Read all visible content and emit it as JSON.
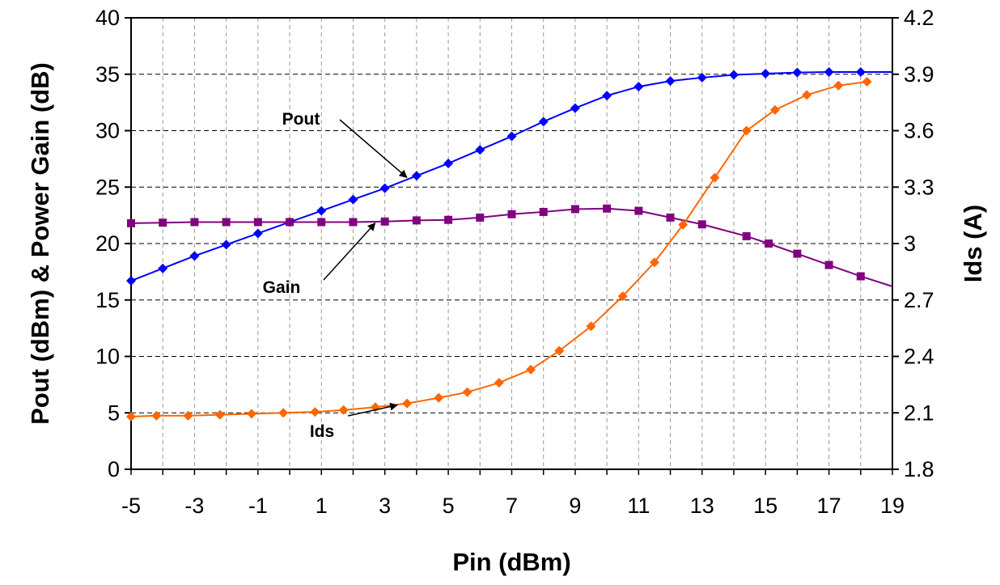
{
  "chart_data": {
    "type": "line",
    "title": "",
    "xlabel": "Pin (dBm)",
    "ylabel": "Pout (dBm) & Power Gain (dB)",
    "y2label": "Ids (A)",
    "xlim": [
      -5,
      19
    ],
    "ylim": [
      0,
      40
    ],
    "y2lim": [
      1.8,
      4.2
    ],
    "x_ticks": [
      "-5",
      "-3",
      "-1",
      "1",
      "3",
      "5",
      "7",
      "9",
      "11",
      "13",
      "15",
      "17",
      "19"
    ],
    "y_ticks": [
      "0",
      "5",
      "10",
      "15",
      "20",
      "25",
      "30",
      "35",
      "40"
    ],
    "y2_ticks": [
      "1.8",
      "2.1",
      "2.4",
      "2.7",
      "3",
      "3.3",
      "3.6",
      "3.9",
      "4.2"
    ],
    "grid": true,
    "series": [
      {
        "name": "Pout",
        "axis": "left",
        "color": "#0000ff",
        "marker": "diamond",
        "x": [
          -5,
          -4,
          -3,
          -2,
          -1,
          0,
          1,
          2,
          3,
          4,
          5,
          6,
          7,
          8,
          9,
          10,
          11,
          12,
          13,
          14,
          15,
          16,
          17,
          18,
          19
        ],
        "y": [
          16.7,
          17.8,
          18.9,
          19.9,
          20.9,
          21.9,
          22.9,
          23.9,
          24.9,
          26.0,
          27.1,
          28.3,
          29.5,
          30.8,
          32.0,
          33.1,
          33.9,
          34.4,
          34.7,
          34.95,
          35.05,
          35.15,
          35.2,
          35.2,
          35.2
        ]
      },
      {
        "name": "Gain",
        "axis": "left",
        "color": "#800080",
        "marker": "square",
        "x": [
          -5,
          -4,
          -3,
          -2,
          -1,
          0,
          1,
          2,
          3,
          4,
          5,
          6,
          7,
          8,
          9,
          10,
          11,
          12,
          13,
          14.4,
          15.1,
          16,
          17,
          18,
          19
        ],
        "y": [
          21.8,
          21.85,
          21.9,
          21.9,
          21.9,
          21.9,
          21.9,
          21.9,
          21.95,
          22.05,
          22.1,
          22.3,
          22.6,
          22.8,
          23.05,
          23.1,
          22.9,
          22.3,
          21.7,
          20.65,
          20.0,
          19.1,
          18.1,
          17.1,
          16.2
        ]
      },
      {
        "name": "Ids",
        "axis": "right",
        "color": "#ff6600",
        "marker": "diamond",
        "x": [
          -5,
          -4.2,
          -3.2,
          -2.2,
          -1.2,
          -0.2,
          0.8,
          1.7,
          2.7,
          3.7,
          4.7,
          5.6,
          6.6,
          7.6,
          8.5,
          9.5,
          10.5,
          11.5,
          12.4,
          13.4,
          14.4,
          15.3,
          16.3,
          17.3,
          18.2
        ],
        "y": [
          2.08,
          2.085,
          2.085,
          2.09,
          2.095,
          2.1,
          2.105,
          2.115,
          2.13,
          2.15,
          2.18,
          2.21,
          2.26,
          2.33,
          2.43,
          2.56,
          2.72,
          2.9,
          3.1,
          3.35,
          3.6,
          3.71,
          3.79,
          3.84,
          3.86
        ]
      }
    ],
    "annotations": [
      {
        "text": "Pout",
        "series": "Pout",
        "x": 4
      },
      {
        "text": "Gain",
        "series": "Gain",
        "x": 3
      },
      {
        "text": "Ids",
        "series": "Ids",
        "x": 4.2
      }
    ]
  }
}
